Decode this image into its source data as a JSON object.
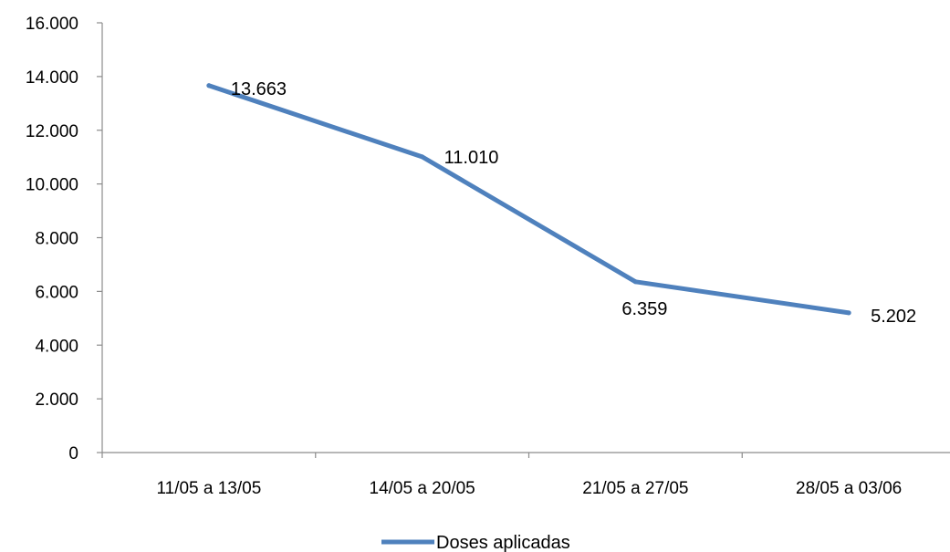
{
  "chart_data": {
    "type": "line",
    "categories": [
      "11/05 a 13/05",
      "14/05 a 20/05",
      "21/05 a 27/05",
      "28/05 a 03/06"
    ],
    "series": [
      {
        "name": "Doses aplicadas",
        "values": [
          13663,
          11010,
          6359,
          5202
        ],
        "data_labels": [
          "13.663",
          "11.010",
          "6.359",
          "5.202"
        ],
        "color": "#4f81bd"
      }
    ],
    "y_ticks": [
      0,
      2000,
      4000,
      6000,
      8000,
      10000,
      12000,
      14000,
      16000
    ],
    "y_tick_labels": [
      "0",
      "2.000",
      "4.000",
      "6.000",
      "8.000",
      "10.000",
      "12.000",
      "14.000",
      "16.000"
    ],
    "ylim": [
      0,
      16000
    ],
    "grid": false,
    "legend_position": "bottom"
  }
}
